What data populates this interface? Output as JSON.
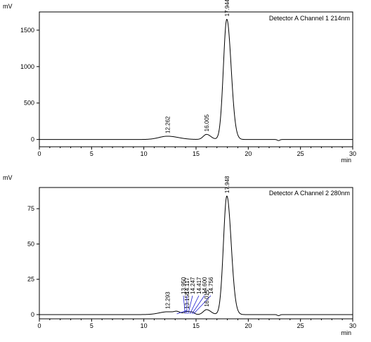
{
  "chart_data": [
    {
      "type": "line",
      "ylabel": "mV",
      "xlabel": "min",
      "legend": "Detector A Channel 1 214nm",
      "xlim": [
        0,
        30
      ],
      "ylim": [
        -100,
        1750
      ],
      "xticks": [
        0,
        5,
        10,
        15,
        20,
        25,
        30
      ],
      "yticks": [
        0,
        500,
        1000,
        1500
      ],
      "baseline": 0,
      "peaks": [
        {
          "rt": 12.262,
          "label": "12.262",
          "height": 45,
          "width": 0.9
        },
        {
          "rt": 16.005,
          "label": "16.005",
          "height": 70,
          "width": 0.35
        },
        {
          "rt": 17.944,
          "label": "17.944",
          "height": 1650,
          "width": 0.36
        }
      ]
    },
    {
      "type": "line",
      "ylabel": "mV",
      "xlabel": "min",
      "legend": "Detector A Channel 2 280nm",
      "xlim": [
        0,
        30
      ],
      "ylim": [
        -3,
        90
      ],
      "xticks": [
        0,
        5,
        10,
        15,
        20,
        25,
        30
      ],
      "yticks": [
        0,
        25,
        50,
        75
      ],
      "baseline": 0,
      "peaks": [
        {
          "rt": 12.293,
          "label": "12.293",
          "height": 2.0,
          "width": 0.9
        },
        {
          "rt": 13.158,
          "label": "13.158",
          "height": 1.0,
          "width": 0.25
        },
        {
          "rt": 13.95,
          "label": "13.950",
          "height": 0.8,
          "width": 0.2
        },
        {
          "rt": 14.117,
          "label": "14.117",
          "height": 0.7,
          "width": 0.15
        },
        {
          "rt": 14.247,
          "label": "14.247",
          "height": 0.7,
          "width": 0.15
        },
        {
          "rt": 14.417,
          "label": "14.417",
          "height": 0.7,
          "width": 0.15
        },
        {
          "rt": 14.6,
          "label": "14.600",
          "height": 0.8,
          "width": 0.15
        },
        {
          "rt": 14.756,
          "label": "14.756",
          "height": 0.8,
          "width": 0.15
        },
        {
          "rt": 16.015,
          "label": "16.015",
          "height": 3.5,
          "width": 0.35
        },
        {
          "rt": 17.948,
          "label": "17.948",
          "height": 84,
          "width": 0.36
        }
      ]
    }
  ]
}
